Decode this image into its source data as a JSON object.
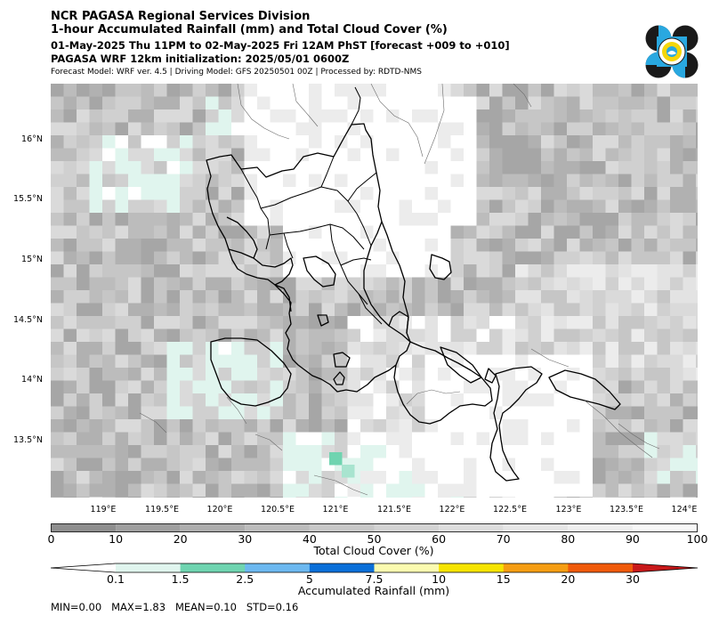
{
  "header": {
    "line1": "NCR PAGASA Regional Services Division",
    "line2": "1-hour Accumulated Rainfall (mm) and Total Cloud Cover (%)",
    "line3": "01-May-2025 Thu 11PM to 02-May-2025 Fri 12AM PhST [forecast +009 to +010]",
    "line4": "PAGASA WRF 12km initialization: 2025/05/01 0600Z",
    "line5": "Forecast Model: WRF ver. 4.5 | Driving Model: GFS 20250501 00Z | Processed by: RDTD-NMS"
  },
  "logo": {
    "icon": "pagasa-logo-icon",
    "colors": {
      "navy": "#1a1a1a",
      "blue": "#29a8e0",
      "yellow": "#f5d60a"
    }
  },
  "map": {
    "lat_labels": [
      "16°N",
      "15.5°N",
      "15°N",
      "14.5°N",
      "14°N",
      "13.5°N"
    ],
    "lon_labels": [
      "119°E",
      "119.5°E",
      "120°E",
      "120.5°E",
      "121°E",
      "121.5°E",
      "122°E",
      "122.5°E",
      "123°E",
      "123.5°E",
      "124°E"
    ]
  },
  "cloud_colorbar": {
    "title": "Total Cloud Cover (%)",
    "ticks": [
      "0",
      "10",
      "20",
      "30",
      "40",
      "50",
      "60",
      "70",
      "80",
      "90",
      "100"
    ],
    "colors": [
      "#8e8e8e",
      "#9f9f9f",
      "#aeaeae",
      "#bcbcbc",
      "#c8c8c8",
      "#d3d3d3",
      "#dddddd",
      "#e6e6e6",
      "#efefef",
      "#f8f8f8"
    ]
  },
  "rain_colorbar": {
    "title": "Accumulated Rainfall (mm)",
    "ticks": [
      "0.1",
      "1.5",
      "2.5",
      "5",
      "7.5",
      "10",
      "15",
      "20",
      "30"
    ],
    "colors": [
      "#e0f5ee",
      "#6fd4b0",
      "#6cb8f0",
      "#0a6fd8",
      "#fbfbb0",
      "#f6e400",
      "#f59d12",
      "#f05a0a",
      "#c8191a"
    ]
  },
  "stats": {
    "text": "MIN=0.00   MAX=1.83   MEAN=0.10   STD=0.16"
  }
}
